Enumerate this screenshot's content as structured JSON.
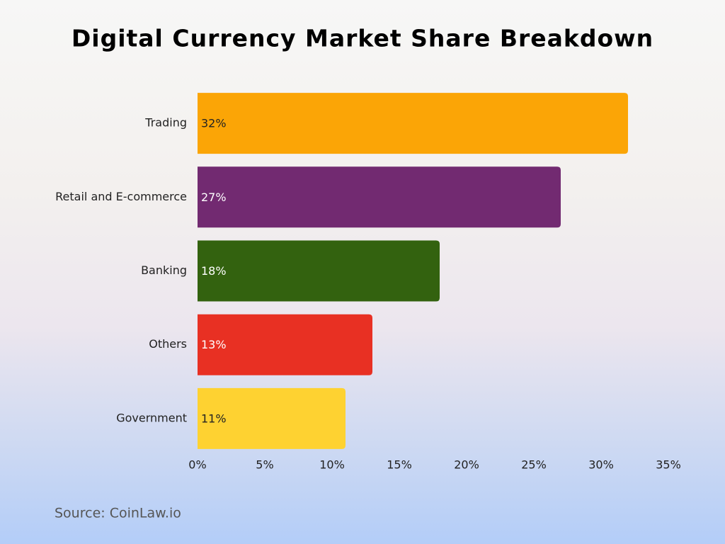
{
  "chart_data": {
    "type": "bar",
    "orientation": "horizontal",
    "title": "Digital Currency Market Share Breakdown",
    "categories": [
      "Trading",
      "Retail and E-commerce",
      "Banking",
      "Others",
      "Government"
    ],
    "values": [
      32,
      27,
      18,
      13,
      11
    ],
    "value_labels": [
      "32%",
      "27%",
      "18%",
      "13%",
      "11%"
    ],
    "colors": [
      "#fba506",
      "#722a71",
      "#33620f",
      "#e83023",
      "#fed231"
    ],
    "xlim": [
      0,
      35
    ],
    "xticks": [
      {
        "value": 0,
        "label": "0%"
      },
      {
        "value": 5,
        "label": "5%"
      },
      {
        "value": 10,
        "label": "10%"
      },
      {
        "value": 15,
        "label": "15%"
      },
      {
        "value": 20,
        "label": "20%"
      },
      {
        "value": 25,
        "label": "25%"
      },
      {
        "value": 30,
        "label": "30%"
      },
      {
        "value": 35,
        "label": "35%"
      }
    ],
    "source": "Source: CoinLaw.io"
  }
}
